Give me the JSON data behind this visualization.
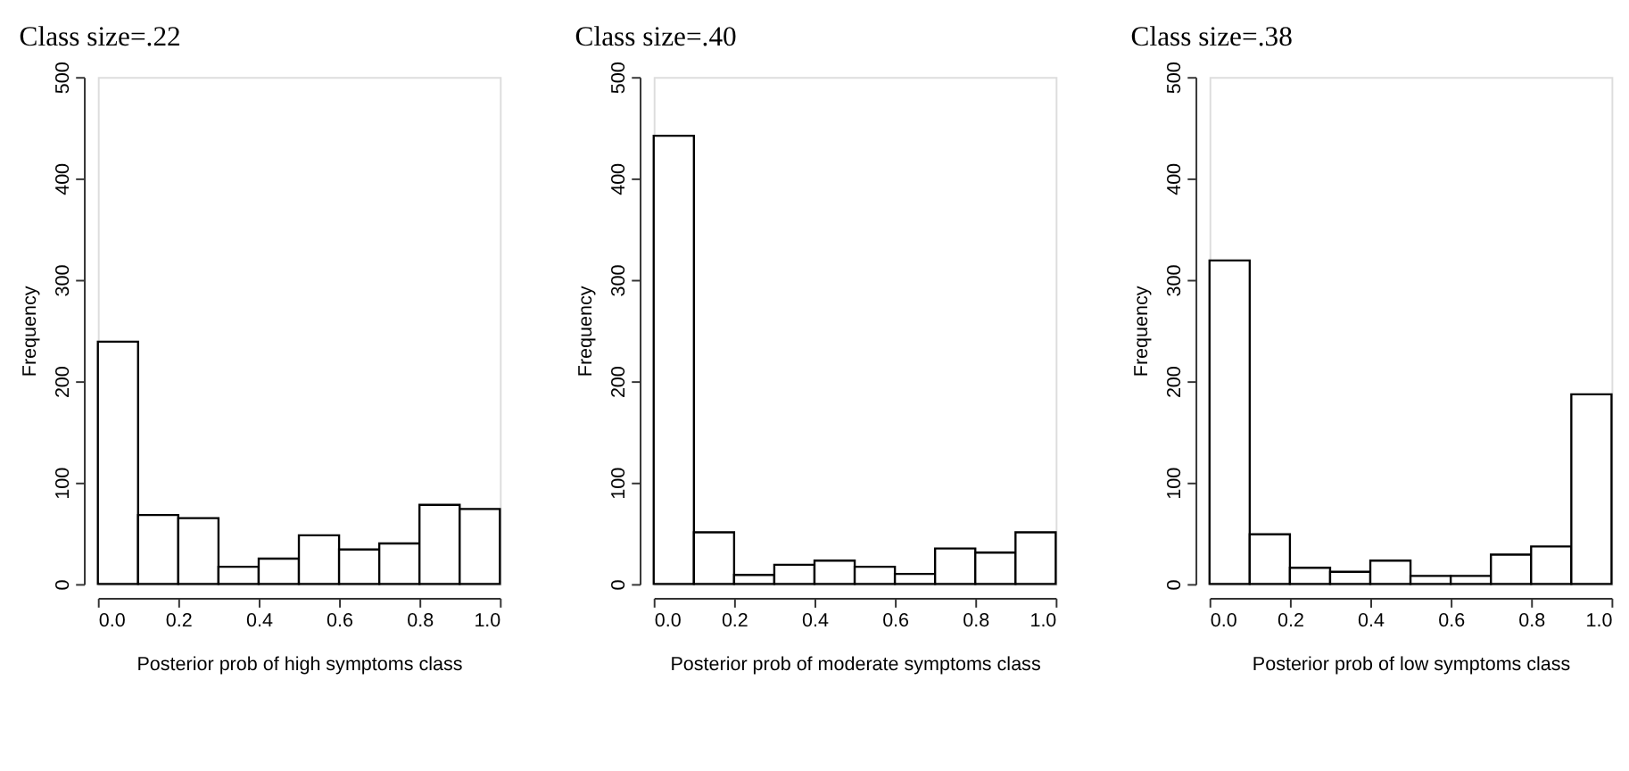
{
  "chart_data": [
    {
      "type": "histogram",
      "title": "Class size=.22",
      "xlabel": "Posterior prob of high symptoms class",
      "ylabel": "Frequency",
      "bins": [
        0,
        0.1,
        0.2,
        0.3,
        0.4,
        0.5,
        0.6,
        0.7,
        0.8,
        0.9,
        1.0
      ],
      "values": [
        239,
        68,
        65,
        17,
        25,
        48,
        34,
        40,
        78,
        74
      ],
      "color": "#ffffff",
      "xlim": [
        0,
        1
      ],
      "xticks": [
        {
          "value": 0,
          "label": "0.0"
        },
        {
          "value": 0.2,
          "label": "0.2"
        },
        {
          "value": 0.4,
          "label": "0.4"
        },
        {
          "value": 0.6,
          "label": "0.6"
        },
        {
          "value": 0.8,
          "label": "0.8"
        },
        {
          "value": 1,
          "label": "1.0"
        }
      ],
      "ylim": [
        0,
        500
      ],
      "yticks": [
        0,
        100,
        200,
        300,
        400,
        500
      ],
      "grid": false
    },
    {
      "type": "histogram",
      "title": "Class size=.40",
      "xlabel": "Posterior prob of moderate symptoms class",
      "ylabel": "Frequency",
      "bins": [
        0,
        0.1,
        0.2,
        0.3,
        0.4,
        0.5,
        0.6,
        0.7,
        0.8,
        0.9,
        1.0
      ],
      "values": [
        442,
        51,
        9,
        19,
        23,
        17,
        10,
        35,
        31,
        51
      ],
      "color": "#ffffff",
      "xlim": [
        0,
        1
      ],
      "xticks": [
        {
          "value": 0,
          "label": "0.0"
        },
        {
          "value": 0.2,
          "label": "0.2"
        },
        {
          "value": 0.4,
          "label": "0.4"
        },
        {
          "value": 0.6,
          "label": "0.6"
        },
        {
          "value": 0.8,
          "label": "0.8"
        },
        {
          "value": 1,
          "label": "1.0"
        }
      ],
      "ylim": [
        0,
        500
      ],
      "yticks": [
        0,
        100,
        200,
        300,
        400,
        500
      ],
      "grid": false
    },
    {
      "type": "histogram",
      "title": "Class size=.38",
      "xlabel": "Posterior prob of low symptoms class",
      "ylabel": "Frequency",
      "bins": [
        0,
        0.1,
        0.2,
        0.3,
        0.4,
        0.5,
        0.6,
        0.7,
        0.8,
        0.9,
        1.0
      ],
      "values": [
        319,
        49,
        16,
        12,
        23,
        8,
        8,
        29,
        37,
        187
      ],
      "color": "#ffffff",
      "xlim": [
        0,
        1
      ],
      "xticks": [
        {
          "value": 0,
          "label": "0.0"
        },
        {
          "value": 0.2,
          "label": "0.2"
        },
        {
          "value": 0.4,
          "label": "0.4"
        },
        {
          "value": 0.6,
          "label": "0.6"
        },
        {
          "value": 0.8,
          "label": "0.8"
        },
        {
          "value": 1,
          "label": "1.0"
        }
      ],
      "ylim": [
        0,
        500
      ],
      "yticks": [
        0,
        100,
        200,
        300,
        400,
        500
      ],
      "grid": false
    }
  ]
}
